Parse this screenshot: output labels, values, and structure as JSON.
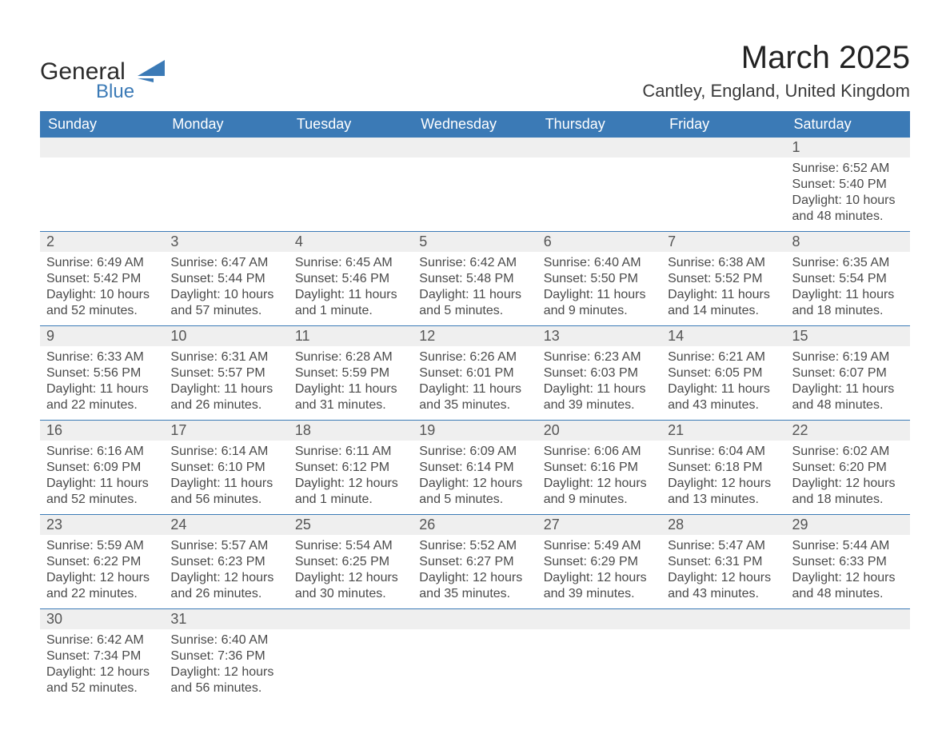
{
  "logo": {
    "word1": "General",
    "word2": "Blue"
  },
  "title": "March 2025",
  "subtitle": "Cantley, England, United Kingdom",
  "colors": {
    "header_blue": "#3b7ab6",
    "light_gray": "#efefef",
    "row_line": "#3b7ab6",
    "text_dark": "#333333",
    "text_muted": "#4a4a4a",
    "background": "#ffffff"
  },
  "day_headers": [
    "Sunday",
    "Monday",
    "Tuesday",
    "Wednesday",
    "Thursday",
    "Friday",
    "Saturday"
  ],
  "weeks": [
    [
      null,
      null,
      null,
      null,
      null,
      null,
      {
        "n": "1",
        "sunrise": "6:52 AM",
        "sunset": "5:40 PM",
        "daylight1": "10 hours",
        "daylight2": "and 48 minutes."
      }
    ],
    [
      {
        "n": "2",
        "sunrise": "6:49 AM",
        "sunset": "5:42 PM",
        "daylight1": "10 hours",
        "daylight2": "and 52 minutes."
      },
      {
        "n": "3",
        "sunrise": "6:47 AM",
        "sunset": "5:44 PM",
        "daylight1": "10 hours",
        "daylight2": "and 57 minutes."
      },
      {
        "n": "4",
        "sunrise": "6:45 AM",
        "sunset": "5:46 PM",
        "daylight1": "11 hours",
        "daylight2": "and 1 minute."
      },
      {
        "n": "5",
        "sunrise": "6:42 AM",
        "sunset": "5:48 PM",
        "daylight1": "11 hours",
        "daylight2": "and 5 minutes."
      },
      {
        "n": "6",
        "sunrise": "6:40 AM",
        "sunset": "5:50 PM",
        "daylight1": "11 hours",
        "daylight2": "and 9 minutes."
      },
      {
        "n": "7",
        "sunrise": "6:38 AM",
        "sunset": "5:52 PM",
        "daylight1": "11 hours",
        "daylight2": "and 14 minutes."
      },
      {
        "n": "8",
        "sunrise": "6:35 AM",
        "sunset": "5:54 PM",
        "daylight1": "11 hours",
        "daylight2": "and 18 minutes."
      }
    ],
    [
      {
        "n": "9",
        "sunrise": "6:33 AM",
        "sunset": "5:56 PM",
        "daylight1": "11 hours",
        "daylight2": "and 22 minutes."
      },
      {
        "n": "10",
        "sunrise": "6:31 AM",
        "sunset": "5:57 PM",
        "daylight1": "11 hours",
        "daylight2": "and 26 minutes."
      },
      {
        "n": "11",
        "sunrise": "6:28 AM",
        "sunset": "5:59 PM",
        "daylight1": "11 hours",
        "daylight2": "and 31 minutes."
      },
      {
        "n": "12",
        "sunrise": "6:26 AM",
        "sunset": "6:01 PM",
        "daylight1": "11 hours",
        "daylight2": "and 35 minutes."
      },
      {
        "n": "13",
        "sunrise": "6:23 AM",
        "sunset": "6:03 PM",
        "daylight1": "11 hours",
        "daylight2": "and 39 minutes."
      },
      {
        "n": "14",
        "sunrise": "6:21 AM",
        "sunset": "6:05 PM",
        "daylight1": "11 hours",
        "daylight2": "and 43 minutes."
      },
      {
        "n": "15",
        "sunrise": "6:19 AM",
        "sunset": "6:07 PM",
        "daylight1": "11 hours",
        "daylight2": "and 48 minutes."
      }
    ],
    [
      {
        "n": "16",
        "sunrise": "6:16 AM",
        "sunset": "6:09 PM",
        "daylight1": "11 hours",
        "daylight2": "and 52 minutes."
      },
      {
        "n": "17",
        "sunrise": "6:14 AM",
        "sunset": "6:10 PM",
        "daylight1": "11 hours",
        "daylight2": "and 56 minutes."
      },
      {
        "n": "18",
        "sunrise": "6:11 AM",
        "sunset": "6:12 PM",
        "daylight1": "12 hours",
        "daylight2": "and 1 minute."
      },
      {
        "n": "19",
        "sunrise": "6:09 AM",
        "sunset": "6:14 PM",
        "daylight1": "12 hours",
        "daylight2": "and 5 minutes."
      },
      {
        "n": "20",
        "sunrise": "6:06 AM",
        "sunset": "6:16 PM",
        "daylight1": "12 hours",
        "daylight2": "and 9 minutes."
      },
      {
        "n": "21",
        "sunrise": "6:04 AM",
        "sunset": "6:18 PM",
        "daylight1": "12 hours",
        "daylight2": "and 13 minutes."
      },
      {
        "n": "22",
        "sunrise": "6:02 AM",
        "sunset": "6:20 PM",
        "daylight1": "12 hours",
        "daylight2": "and 18 minutes."
      }
    ],
    [
      {
        "n": "23",
        "sunrise": "5:59 AM",
        "sunset": "6:22 PM",
        "daylight1": "12 hours",
        "daylight2": "and 22 minutes."
      },
      {
        "n": "24",
        "sunrise": "5:57 AM",
        "sunset": "6:23 PM",
        "daylight1": "12 hours",
        "daylight2": "and 26 minutes."
      },
      {
        "n": "25",
        "sunrise": "5:54 AM",
        "sunset": "6:25 PM",
        "daylight1": "12 hours",
        "daylight2": "and 30 minutes."
      },
      {
        "n": "26",
        "sunrise": "5:52 AM",
        "sunset": "6:27 PM",
        "daylight1": "12 hours",
        "daylight2": "and 35 minutes."
      },
      {
        "n": "27",
        "sunrise": "5:49 AM",
        "sunset": "6:29 PM",
        "daylight1": "12 hours",
        "daylight2": "and 39 minutes."
      },
      {
        "n": "28",
        "sunrise": "5:47 AM",
        "sunset": "6:31 PM",
        "daylight1": "12 hours",
        "daylight2": "and 43 minutes."
      },
      {
        "n": "29",
        "sunrise": "5:44 AM",
        "sunset": "6:33 PM",
        "daylight1": "12 hours",
        "daylight2": "and 48 minutes."
      }
    ],
    [
      {
        "n": "30",
        "sunrise": "6:42 AM",
        "sunset": "7:34 PM",
        "daylight1": "12 hours",
        "daylight2": "and 52 minutes."
      },
      {
        "n": "31",
        "sunrise": "6:40 AM",
        "sunset": "7:36 PM",
        "daylight1": "12 hours",
        "daylight2": "and 56 minutes."
      },
      null,
      null,
      null,
      null,
      null
    ]
  ],
  "labels": {
    "sunrise_prefix": "Sunrise: ",
    "sunset_prefix": "Sunset: ",
    "daylight_prefix": "Daylight: "
  }
}
